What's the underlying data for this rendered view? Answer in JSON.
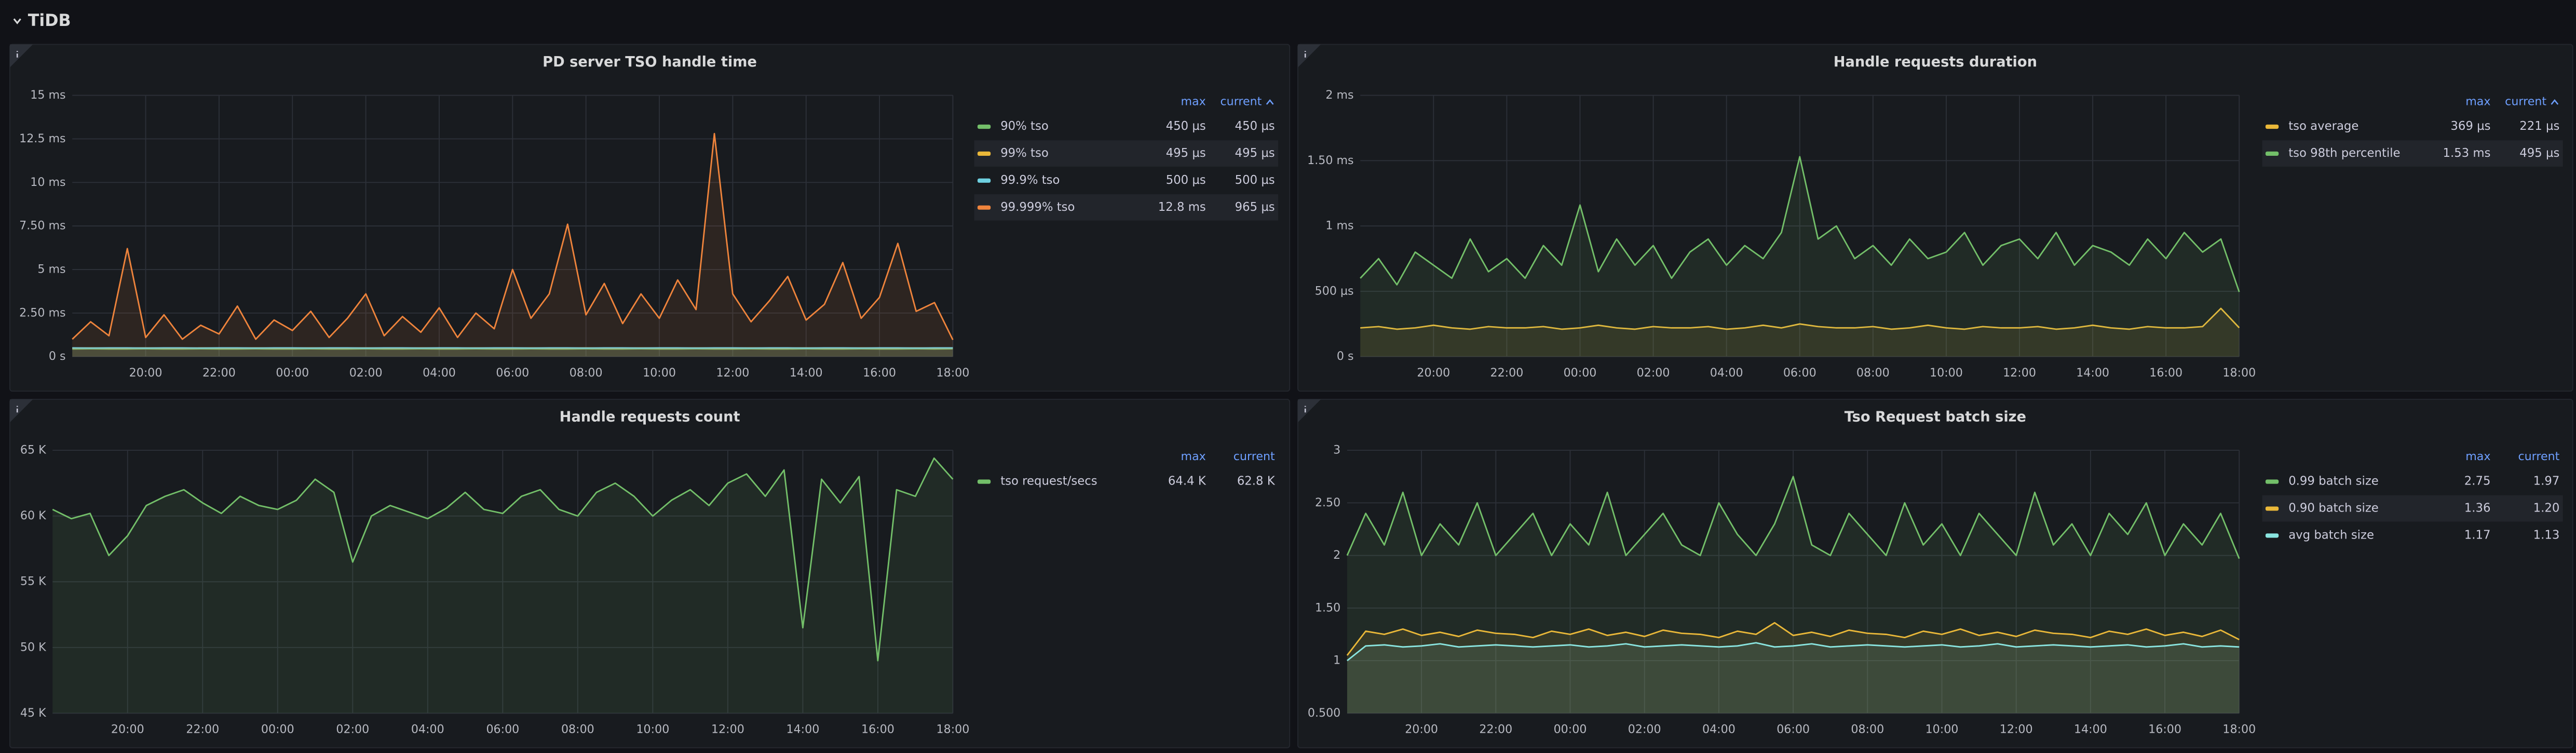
{
  "section_title": "TiDB",
  "chart_data": [
    {
      "type": "line",
      "title": "PD server TSO handle time",
      "x": [
        0,
        0.5,
        1,
        1.5,
        2,
        2.5,
        3,
        3.5,
        4,
        4.5,
        5,
        5.5,
        6,
        6.5,
        7,
        7.5,
        8,
        8.5,
        9,
        9.5,
        10,
        10.5,
        11,
        11.5,
        12,
        12.5,
        13,
        13.5,
        14,
        14.5,
        15,
        15.5,
        16,
        16.5,
        17,
        17.5,
        18,
        18.5,
        19,
        19.5,
        20,
        20.5,
        21,
        21.5,
        22,
        22.5,
        23,
        23.5,
        24
      ],
      "xlim": [
        0,
        24
      ],
      "xticks": [
        {
          "value": 2,
          "label": "20:00"
        },
        {
          "value": 4,
          "label": "22:00"
        },
        {
          "value": 6,
          "label": "00:00"
        },
        {
          "value": 8,
          "label": "02:00"
        },
        {
          "value": 10,
          "label": "04:00"
        },
        {
          "value": 12,
          "label": "06:00"
        },
        {
          "value": 14,
          "label": "08:00"
        },
        {
          "value": 16,
          "label": "10:00"
        },
        {
          "value": 18,
          "label": "12:00"
        },
        {
          "value": 20,
          "label": "14:00"
        },
        {
          "value": 22,
          "label": "16:00"
        },
        {
          "value": 24,
          "label": "18:00"
        }
      ],
      "ylim": [
        0,
        15
      ],
      "yticks": [
        {
          "value": 0,
          "label": "0 s"
        },
        {
          "value": 2.5,
          "label": "2.50 ms"
        },
        {
          "value": 5,
          "label": "5 ms"
        },
        {
          "value": 7.5,
          "label": "7.50 ms"
        },
        {
          "value": 10,
          "label": "10 ms"
        },
        {
          "value": 12.5,
          "label": "12.5 ms"
        },
        {
          "value": 15,
          "label": "15 ms"
        }
      ],
      "grid": true,
      "legend_columns": [
        "max",
        "current"
      ],
      "legend_sorted": true,
      "series": [
        {
          "name": "90% tso",
          "color": "#73bf69",
          "legend_max": "450 µs",
          "legend_current": "450 µs",
          "values": [
            0.44,
            0.45,
            0.44,
            0.44,
            0.45,
            0.44,
            0.44,
            0.45,
            0.44,
            0.44,
            0.45,
            0.44,
            0.44,
            0.45,
            0.44,
            0.44,
            0.45,
            0.44,
            0.44,
            0.45,
            0.44,
            0.44,
            0.45,
            0.44,
            0.44,
            0.45,
            0.44,
            0.44,
            0.45,
            0.44,
            0.44,
            0.45,
            0.44,
            0.44,
            0.45,
            0.44,
            0.44,
            0.45,
            0.44,
            0.44,
            0.45,
            0.44,
            0.44,
            0.45,
            0.44,
            0.44,
            0.45,
            0.44,
            0.45
          ]
        },
        {
          "name": "99% tso",
          "color": "#eab839",
          "legend_max": "495 µs",
          "legend_current": "495 µs",
          "values": [
            0.49,
            0.495,
            0.49,
            0.49,
            0.495,
            0.49,
            0.49,
            0.495,
            0.49,
            0.49,
            0.495,
            0.49,
            0.49,
            0.495,
            0.49,
            0.49,
            0.495,
            0.49,
            0.49,
            0.495,
            0.49,
            0.49,
            0.495,
            0.49,
            0.49,
            0.495,
            0.49,
            0.49,
            0.495,
            0.49,
            0.49,
            0.495,
            0.49,
            0.49,
            0.495,
            0.49,
            0.49,
            0.495,
            0.49,
            0.49,
            0.495,
            0.49,
            0.49,
            0.495,
            0.49,
            0.49,
            0.495,
            0.49,
            0.495
          ]
        },
        {
          "name": "99.9% tso",
          "color": "#6ed0e0",
          "legend_max": "500 µs",
          "legend_current": "500 µs",
          "values": [
            0.5,
            0.49,
            0.5,
            0.5,
            0.49,
            0.5,
            0.5,
            0.49,
            0.5,
            0.5,
            0.49,
            0.5,
            0.5,
            0.49,
            0.5,
            0.5,
            0.49,
            0.5,
            0.5,
            0.49,
            0.5,
            0.5,
            0.49,
            0.5,
            0.5,
            0.49,
            0.5,
            0.5,
            0.49,
            0.5,
            0.5,
            0.49,
            0.5,
            0.5,
            0.49,
            0.5,
            0.5,
            0.49,
            0.5,
            0.5,
            0.49,
            0.5,
            0.5,
            0.49,
            0.5,
            0.5,
            0.49,
            0.5,
            0.5
          ]
        },
        {
          "name": "99.999% tso",
          "color": "#ef843c",
          "legend_max": "12.8 ms",
          "legend_current": "965 µs",
          "values": [
            1.0,
            2.0,
            1.2,
            6.2,
            1.1,
            2.4,
            1.0,
            1.8,
            1.3,
            2.9,
            1.0,
            2.1,
            1.5,
            2.6,
            1.1,
            2.2,
            3.6,
            1.2,
            2.3,
            1.4,
            2.8,
            1.1,
            2.5,
            1.6,
            5.0,
            2.2,
            3.6,
            7.6,
            2.4,
            4.2,
            1.9,
            3.6,
            2.2,
            4.4,
            2.7,
            12.8,
            3.6,
            2.0,
            3.2,
            4.6,
            2.1,
            3.0,
            5.4,
            2.2,
            3.4,
            6.5,
            2.6,
            3.1,
            0.965
          ]
        }
      ]
    },
    {
      "type": "line",
      "title": "Handle requests duration",
      "x": [
        0,
        0.5,
        1,
        1.5,
        2,
        2.5,
        3,
        3.5,
        4,
        4.5,
        5,
        5.5,
        6,
        6.5,
        7,
        7.5,
        8,
        8.5,
        9,
        9.5,
        10,
        10.5,
        11,
        11.5,
        12,
        12.5,
        13,
        13.5,
        14,
        14.5,
        15,
        15.5,
        16,
        16.5,
        17,
        17.5,
        18,
        18.5,
        19,
        19.5,
        20,
        20.5,
        21,
        21.5,
        22,
        22.5,
        23,
        23.5,
        24
      ],
      "xlim": [
        0,
        24
      ],
      "xticks": [
        {
          "value": 2,
          "label": "20:00"
        },
        {
          "value": 4,
          "label": "22:00"
        },
        {
          "value": 6,
          "label": "00:00"
        },
        {
          "value": 8,
          "label": "02:00"
        },
        {
          "value": 10,
          "label": "04:00"
        },
        {
          "value": 12,
          "label": "06:00"
        },
        {
          "value": 14,
          "label": "08:00"
        },
        {
          "value": 16,
          "label": "10:00"
        },
        {
          "value": 18,
          "label": "12:00"
        },
        {
          "value": 20,
          "label": "14:00"
        },
        {
          "value": 22,
          "label": "16:00"
        },
        {
          "value": 24,
          "label": "18:00"
        }
      ],
      "ylim": [
        0,
        2
      ],
      "yticks": [
        {
          "value": 0,
          "label": "0 s"
        },
        {
          "value": 0.5,
          "label": "500 µs"
        },
        {
          "value": 1,
          "label": "1 ms"
        },
        {
          "value": 1.5,
          "label": "1.50 ms"
        },
        {
          "value": 2,
          "label": "2 ms"
        }
      ],
      "grid": true,
      "legend_columns": [
        "max",
        "current"
      ],
      "legend_sorted": true,
      "series": [
        {
          "name": "tso average",
          "color": "#eab839",
          "legend_max": "369 µs",
          "legend_current": "221 µs",
          "values": [
            0.22,
            0.23,
            0.21,
            0.22,
            0.24,
            0.22,
            0.21,
            0.23,
            0.22,
            0.22,
            0.23,
            0.21,
            0.22,
            0.24,
            0.22,
            0.21,
            0.23,
            0.22,
            0.22,
            0.23,
            0.21,
            0.22,
            0.24,
            0.22,
            0.25,
            0.23,
            0.22,
            0.22,
            0.23,
            0.21,
            0.22,
            0.24,
            0.22,
            0.21,
            0.23,
            0.22,
            0.22,
            0.23,
            0.21,
            0.22,
            0.24,
            0.22,
            0.21,
            0.23,
            0.22,
            0.22,
            0.23,
            0.369,
            0.221
          ]
        },
        {
          "name": "tso 98th percentile",
          "color": "#73bf69",
          "legend_max": "1.53 ms",
          "legend_current": "495 µs",
          "values": [
            0.6,
            0.75,
            0.55,
            0.8,
            0.7,
            0.6,
            0.9,
            0.65,
            0.75,
            0.6,
            0.85,
            0.7,
            1.16,
            0.65,
            0.9,
            0.7,
            0.85,
            0.6,
            0.8,
            0.9,
            0.7,
            0.85,
            0.75,
            0.95,
            1.53,
            0.9,
            1.0,
            0.75,
            0.85,
            0.7,
            0.9,
            0.75,
            0.8,
            0.95,
            0.7,
            0.85,
            0.9,
            0.75,
            0.95,
            0.7,
            0.85,
            0.8,
            0.7,
            0.9,
            0.75,
            0.95,
            0.8,
            0.9,
            0.495
          ]
        }
      ]
    },
    {
      "type": "line",
      "title": "Handle requests count",
      "x": [
        0,
        0.5,
        1,
        1.5,
        2,
        2.5,
        3,
        3.5,
        4,
        4.5,
        5,
        5.5,
        6,
        6.5,
        7,
        7.5,
        8,
        8.5,
        9,
        9.5,
        10,
        10.5,
        11,
        11.5,
        12,
        12.5,
        13,
        13.5,
        14,
        14.5,
        15,
        15.5,
        16,
        16.5,
        17,
        17.5,
        18,
        18.5,
        19,
        19.5,
        20,
        20.5,
        21,
        21.5,
        22,
        22.5,
        23,
        23.5,
        24
      ],
      "xlim": [
        0,
        24
      ],
      "xticks": [
        {
          "value": 2,
          "label": "20:00"
        },
        {
          "value": 4,
          "label": "22:00"
        },
        {
          "value": 6,
          "label": "00:00"
        },
        {
          "value": 8,
          "label": "02:00"
        },
        {
          "value": 10,
          "label": "04:00"
        },
        {
          "value": 12,
          "label": "06:00"
        },
        {
          "value": 14,
          "label": "08:00"
        },
        {
          "value": 16,
          "label": "10:00"
        },
        {
          "value": 18,
          "label": "12:00"
        },
        {
          "value": 20,
          "label": "14:00"
        },
        {
          "value": 22,
          "label": "16:00"
        },
        {
          "value": 24,
          "label": "18:00"
        }
      ],
      "ylim": [
        45000,
        65000
      ],
      "yticks": [
        {
          "value": 45000,
          "label": "45 K"
        },
        {
          "value": 50000,
          "label": "50 K"
        },
        {
          "value": 55000,
          "label": "55 K"
        },
        {
          "value": 60000,
          "label": "60 K"
        },
        {
          "value": 65000,
          "label": "65 K"
        }
      ],
      "grid": true,
      "legend_columns": [
        "max",
        "current"
      ],
      "legend_sorted": false,
      "series": [
        {
          "name": "tso request/secs",
          "color": "#73bf69",
          "legend_max": "64.4 K",
          "legend_current": "62.8 K",
          "values": [
            60500,
            59800,
            60200,
            57000,
            58500,
            60800,
            61500,
            62000,
            61000,
            60200,
            61500,
            60800,
            60500,
            61200,
            62800,
            61800,
            56500,
            60000,
            60800,
            60300,
            59800,
            60600,
            61800,
            60500,
            60200,
            61500,
            62000,
            60500,
            60000,
            61800,
            62500,
            61500,
            60000,
            61200,
            62000,
            60800,
            62500,
            63200,
            61500,
            63500,
            51500,
            62800,
            61000,
            63000,
            49000,
            62000,
            61500,
            64400,
            62800
          ]
        }
      ]
    },
    {
      "type": "line",
      "title": "Tso Request batch size",
      "x": [
        0,
        0.5,
        1,
        1.5,
        2,
        2.5,
        3,
        3.5,
        4,
        4.5,
        5,
        5.5,
        6,
        6.5,
        7,
        7.5,
        8,
        8.5,
        9,
        9.5,
        10,
        10.5,
        11,
        11.5,
        12,
        12.5,
        13,
        13.5,
        14,
        14.5,
        15,
        15.5,
        16,
        16.5,
        17,
        17.5,
        18,
        18.5,
        19,
        19.5,
        20,
        20.5,
        21,
        21.5,
        22,
        22.5,
        23,
        23.5,
        24
      ],
      "xlim": [
        0,
        24
      ],
      "xticks": [
        {
          "value": 2,
          "label": "20:00"
        },
        {
          "value": 4,
          "label": "22:00"
        },
        {
          "value": 6,
          "label": "00:00"
        },
        {
          "value": 8,
          "label": "02:00"
        },
        {
          "value": 10,
          "label": "04:00"
        },
        {
          "value": 12,
          "label": "06:00"
        },
        {
          "value": 14,
          "label": "08:00"
        },
        {
          "value": 16,
          "label": "10:00"
        },
        {
          "value": 18,
          "label": "12:00"
        },
        {
          "value": 20,
          "label": "14:00"
        },
        {
          "value": 22,
          "label": "16:00"
        },
        {
          "value": 24,
          "label": "18:00"
        }
      ],
      "ylim": [
        0.5,
        3
      ],
      "yticks": [
        {
          "value": 0.5,
          "label": "0.500"
        },
        1,
        {
          "value": 1.5,
          "label": "1.50"
        },
        2,
        {
          "value": 2.5,
          "label": "2.50"
        },
        3
      ],
      "grid": true,
      "legend_columns": [
        "max",
        "current"
      ],
      "legend_sorted": false,
      "series": [
        {
          "name": "0.99 batch size",
          "color": "#73bf69",
          "legend_max": "2.75",
          "legend_current": "1.97",
          "values": [
            2.0,
            2.4,
            2.1,
            2.6,
            2.0,
            2.3,
            2.1,
            2.5,
            2.0,
            2.2,
            2.4,
            2.0,
            2.3,
            2.1,
            2.6,
            2.0,
            2.2,
            2.4,
            2.1,
            2.0,
            2.5,
            2.2,
            2.0,
            2.3,
            2.75,
            2.1,
            2.0,
            2.4,
            2.2,
            2.0,
            2.5,
            2.1,
            2.3,
            2.0,
            2.4,
            2.2,
            2.0,
            2.6,
            2.1,
            2.3,
            2.0,
            2.4,
            2.2,
            2.5,
            2.0,
            2.3,
            2.1,
            2.4,
            1.97
          ]
        },
        {
          "name": "0.90 batch size",
          "color": "#eab839",
          "legend_max": "1.36",
          "legend_current": "1.20",
          "values": [
            1.05,
            1.28,
            1.25,
            1.3,
            1.24,
            1.27,
            1.23,
            1.29,
            1.26,
            1.25,
            1.22,
            1.28,
            1.25,
            1.3,
            1.24,
            1.27,
            1.23,
            1.29,
            1.26,
            1.25,
            1.22,
            1.28,
            1.25,
            1.36,
            1.24,
            1.27,
            1.23,
            1.29,
            1.26,
            1.25,
            1.22,
            1.28,
            1.25,
            1.3,
            1.24,
            1.27,
            1.23,
            1.29,
            1.26,
            1.25,
            1.22,
            1.28,
            1.25,
            1.3,
            1.24,
            1.27,
            1.23,
            1.29,
            1.2
          ]
        },
        {
          "name": "avg batch size",
          "color": "#8ae5e0",
          "legend_max": "1.17",
          "legend_current": "1.13",
          "values": [
            1.0,
            1.14,
            1.15,
            1.13,
            1.14,
            1.16,
            1.13,
            1.14,
            1.15,
            1.14,
            1.13,
            1.14,
            1.15,
            1.13,
            1.14,
            1.16,
            1.13,
            1.14,
            1.15,
            1.14,
            1.13,
            1.14,
            1.17,
            1.13,
            1.14,
            1.16,
            1.13,
            1.14,
            1.15,
            1.14,
            1.13,
            1.14,
            1.15,
            1.13,
            1.14,
            1.16,
            1.13,
            1.14,
            1.15,
            1.14,
            1.13,
            1.14,
            1.15,
            1.13,
            1.14,
            1.16,
            1.13,
            1.14,
            1.13
          ]
        }
      ]
    }
  ]
}
